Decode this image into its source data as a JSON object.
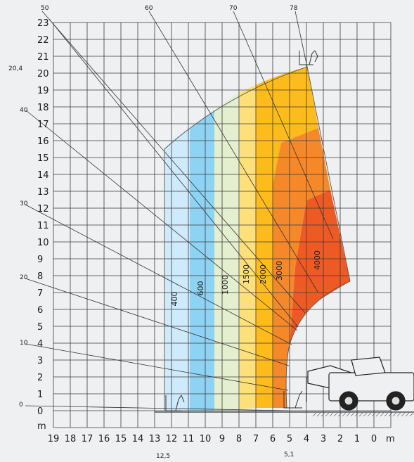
{
  "unit_y": "m",
  "unit_x": "m",
  "y_ticks": [
    "0",
    "1",
    "2",
    "3",
    "4",
    "5",
    "6",
    "7",
    "8",
    "9",
    "10",
    "11",
    "12",
    "13",
    "14",
    "15",
    "16",
    "17",
    "18",
    "19",
    "20",
    "21",
    "22",
    "23"
  ],
  "x_ticks": [
    "19",
    "18",
    "17",
    "16",
    "15",
    "14",
    "13",
    "12",
    "11",
    "10",
    "9",
    "8",
    "7",
    "6",
    "5",
    "4",
    "3",
    "2",
    "1",
    "0"
  ],
  "max_height_label": "20,4",
  "reach_label": "12,5",
  "pivot_label": "5,1",
  "angle_labels": [
    "0",
    "10",
    "20",
    "30",
    "40",
    "50",
    "60",
    "70",
    "78"
  ],
  "load_zones": [
    {
      "label": "400",
      "color": "#cfeafb"
    },
    {
      "label": "600",
      "color": "#8fd3f4"
    },
    {
      "label": "1000",
      "color": "#e3efcf"
    },
    {
      "label": "1500",
      "color": "#fde07a"
    },
    {
      "label": "2000",
      "color": "#fdbc1c"
    },
    {
      "label": "3000",
      "color": "#f5892a"
    },
    {
      "label": "4000",
      "color": "#ee5a24"
    }
  ],
  "icons": [
    "truck-icon",
    "forks-icon"
  ]
}
